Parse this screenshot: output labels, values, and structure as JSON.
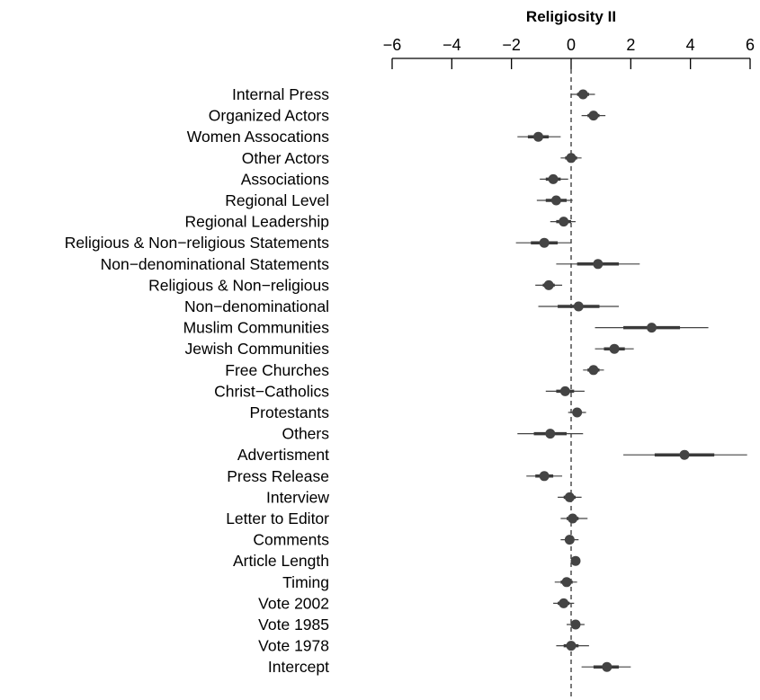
{
  "chart_data": {
    "type": "coefficient-plot",
    "title": "Religiosity II",
    "xlim": [
      -6,
      6
    ],
    "x_ticks": [
      -6,
      -4,
      -2,
      0,
      2,
      4,
      6
    ],
    "x_tick_labels": [
      "−6",
      "−4",
      "−2",
      "0",
      "2",
      "4",
      "6"
    ],
    "axis_position": "top",
    "reference_line": 0,
    "categories": [
      "Internal Press",
      "Organized Actors",
      "Women Assocations",
      "Other Actors",
      "Associations",
      "Regional Level",
      "Regional Leadership",
      "Religious & Non−religious Statements",
      "Non−denominational Statements",
      "Religious & Non−religious",
      "Non−denominational",
      "Muslim Communities",
      "Jewish Communities",
      "Free Churches",
      "Christ−Catholics",
      "Protestants",
      "Others",
      "Advertisment",
      "Press Release",
      "Interview",
      "Letter to Editor",
      "Comments",
      "Article Length",
      "Timing",
      "Vote 2002",
      "Vote 1985",
      "Vote 1978",
      "Intercept"
    ],
    "estimates": [
      0.4,
      0.75,
      -1.1,
      0.0,
      -0.6,
      -0.5,
      -0.25,
      -0.9,
      0.9,
      -0.75,
      0.25,
      2.7,
      1.45,
      0.75,
      -0.2,
      0.2,
      -0.7,
      3.8,
      -0.9,
      -0.05,
      0.05,
      -0.05,
      0.15,
      -0.15,
      -0.25,
      0.15,
      0.0,
      1.2
    ],
    "ci95_low": [
      0.0,
      0.35,
      -1.8,
      -0.35,
      -1.05,
      -1.15,
      -0.7,
      -1.85,
      -0.5,
      -1.2,
      -1.1,
      0.8,
      0.8,
      0.4,
      -0.85,
      -0.1,
      -1.8,
      1.75,
      -1.5,
      -0.45,
      -0.35,
      -0.35,
      0.0,
      -0.55,
      -0.6,
      -0.15,
      -0.5,
      0.35
    ],
    "ci95_high": [
      0.8,
      1.15,
      -0.35,
      0.35,
      -0.1,
      0.05,
      0.15,
      0.0,
      2.3,
      -0.3,
      1.6,
      4.6,
      2.1,
      1.1,
      0.45,
      0.5,
      0.4,
      5.9,
      -0.3,
      0.35,
      0.55,
      0.25,
      0.3,
      0.2,
      0.1,
      0.45,
      0.6,
      2.0
    ],
    "ci68_low": [
      0.2,
      0.55,
      -1.45,
      -0.2,
      -0.85,
      -0.85,
      -0.5,
      -1.35,
      0.2,
      -0.95,
      -0.45,
      1.75,
      1.1,
      0.55,
      -0.5,
      0.05,
      -1.25,
      2.8,
      -1.2,
      -0.25,
      -0.15,
      -0.2,
      0.05,
      -0.35,
      -0.45,
      0.0,
      -0.25,
      0.75
    ],
    "ci68_high": [
      0.6,
      0.95,
      -0.75,
      0.2,
      -0.35,
      -0.15,
      0.0,
      -0.45,
      1.6,
      -0.55,
      0.95,
      3.65,
      1.8,
      0.95,
      0.1,
      0.35,
      -0.15,
      4.8,
      -0.6,
      0.15,
      0.25,
      0.1,
      0.25,
      0.05,
      -0.05,
      0.3,
      0.25,
      1.6
    ],
    "grid": false,
    "legend": "none"
  }
}
